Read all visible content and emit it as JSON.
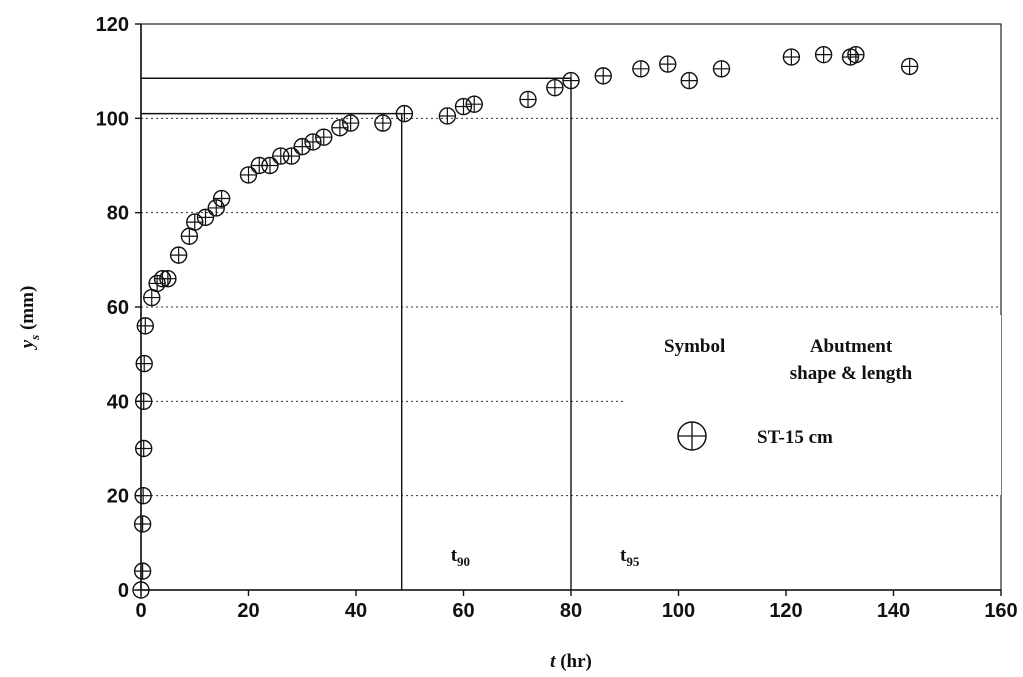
{
  "chart_data": {
    "type": "scatter",
    "xlabel_var": "t",
    "xlabel_unit": " (hr)",
    "ylabel_var": "y",
    "ylabel_sub": "s",
    "ylabel_unit": " (mm)",
    "xlim": [
      0,
      160
    ],
    "ylim": [
      0,
      120
    ],
    "x_ticks": [
      0,
      20,
      40,
      60,
      80,
      100,
      120,
      140,
      160
    ],
    "y_ticks": [
      0,
      20,
      40,
      60,
      80,
      100,
      120
    ],
    "grid": "horizontal dotted",
    "series": [
      {
        "marker": "circle-plus",
        "x": [
          0,
          0.3,
          0.3,
          0.4,
          0.5,
          0.5,
          0.6,
          0.8,
          2,
          3,
          4,
          5,
          7,
          9,
          10,
          12,
          14,
          15,
          20,
          22,
          24,
          26,
          28,
          30,
          32,
          34,
          37,
          39,
          45,
          49,
          57,
          60,
          62,
          72,
          77,
          80,
          86,
          93,
          98,
          102,
          108,
          121,
          127,
          132,
          133,
          143
        ],
        "y": [
          0,
          4,
          14,
          20,
          30,
          40,
          48,
          56,
          62,
          65,
          66,
          66,
          71,
          75,
          78,
          79,
          81,
          83,
          88,
          90,
          90,
          92,
          92,
          94,
          95,
          96,
          98,
          99,
          99,
          101,
          100.5,
          102.5,
          103,
          104,
          106.5,
          108,
          109,
          110.5,
          111.5,
          108,
          110.5,
          113,
          113.5,
          113,
          113.5,
          111
        ]
      }
    ],
    "reference_lines": [
      {
        "label_base": "t",
        "label_sub": "90",
        "x": 48.5,
        "y": 101
      },
      {
        "label_base": "t",
        "label_sub": "95",
        "x": 80,
        "y": 108.5
      }
    ],
    "legend": {
      "header_symbol": "Symbol",
      "header_abutment_1": "Abutment",
      "header_abutment_2": "shape & length",
      "entry_label": "ST-15 cm",
      "placement": "right"
    }
  }
}
